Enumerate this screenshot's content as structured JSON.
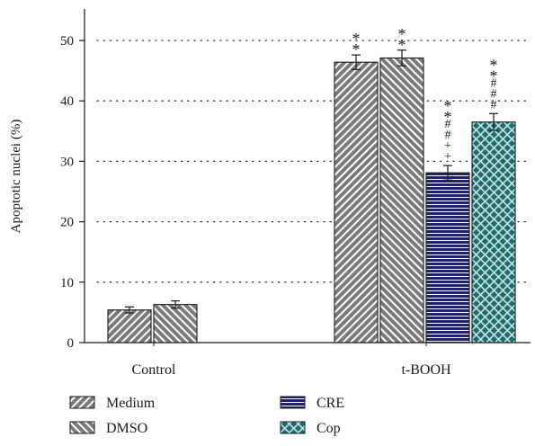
{
  "chart_data": {
    "type": "bar",
    "title": "",
    "xlabel": "",
    "ylabel": "Apoptotic nuclei (%)",
    "ylim": [
      0,
      55
    ],
    "yticks": [
      0,
      10,
      20,
      30,
      40,
      50
    ],
    "grid": "dotted-horizontal",
    "legend_position": "bottom",
    "categories": [
      "Control",
      "t-BOOH"
    ],
    "series": [
      {
        "name": "Medium",
        "pattern": "diag-right",
        "color": "#808080",
        "values": [
          5.4,
          46.4
        ],
        "errors": [
          0.5,
          1.2
        ],
        "annotations": [
          "",
          "* *"
        ]
      },
      {
        "name": "DMSO",
        "pattern": "diag-left",
        "color": "#808080",
        "values": [
          6.3,
          47.1
        ],
        "errors": [
          0.6,
          1.3
        ],
        "annotations": [
          "",
          "* *"
        ]
      },
      {
        "name": "CRE",
        "pattern": "horizontal",
        "color": "#1f2468",
        "values": [
          null,
          28.1
        ],
        "errors": [
          null,
          1.2
        ],
        "annotations": [
          "",
          "* * # # + +"
        ]
      },
      {
        "name": "Cop",
        "pattern": "crosshatch",
        "color": "#1a6e70",
        "values": [
          null,
          36.5
        ],
        "errors": [
          null,
          1.4
        ],
        "annotations": [
          "",
          "* * # # #"
        ]
      }
    ]
  }
}
